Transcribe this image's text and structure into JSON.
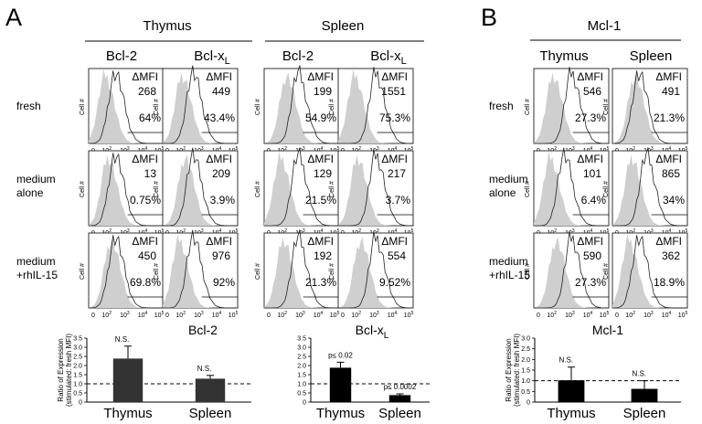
{
  "panels": {
    "A": "A",
    "B": "B"
  },
  "groups": {
    "thymus": "Thymus",
    "spleen": "Spleen",
    "mcl1": "Mcl-1"
  },
  "columns": {
    "bcl2": "Bcl-2",
    "bclx": "Bcl-x",
    "bclx_sub": "L",
    "thymus": "Thymus",
    "spleen": "Spleen"
  },
  "rows": {
    "fresh": [
      "fresh"
    ],
    "medium": [
      "medium",
      "alone"
    ],
    "il15": [
      "medium",
      "+rhIL-15"
    ]
  },
  "histogram": {
    "y_label": "Cell #",
    "x_ticks": [
      "0",
      "10",
      "10",
      "10",
      "10"
    ],
    "x_tick_exps": [
      "",
      "2",
      "3",
      "4",
      "5"
    ],
    "dmfi_label": "ΔMFI"
  },
  "cells": {
    "A": [
      [
        {
          "mfi": "268",
          "pct": "64%"
        },
        {
          "mfi": "449",
          "pct": "43.4%"
        },
        {
          "mfi": "199",
          "pct": "54.9%"
        },
        {
          "mfi": "1551",
          "pct": "75.3%"
        }
      ],
      [
        {
          "mfi": "13",
          "pct": "0.75%"
        },
        {
          "mfi": "209",
          "pct": "3.9%"
        },
        {
          "mfi": "129",
          "pct": "21.5%"
        },
        {
          "mfi": "217",
          "pct": "3.7%"
        }
      ],
      [
        {
          "mfi": "450",
          "pct": "69.8%"
        },
        {
          "mfi": "976",
          "pct": "92%"
        },
        {
          "mfi": "192",
          "pct": "21.3%"
        },
        {
          "mfi": "554",
          "pct": "9.52%"
        }
      ]
    ],
    "B": [
      [
        {
          "mfi": "546",
          "pct": "27.3%"
        },
        {
          "mfi": "491",
          "pct": "21.3%"
        }
      ],
      [
        {
          "mfi": "101",
          "pct": "6.4%"
        },
        {
          "mfi": "865",
          "pct": "34%"
        }
      ],
      [
        {
          "mfi": "590",
          "pct": "27.3%"
        },
        {
          "mfi": "362",
          "pct": "18.9%"
        }
      ]
    ]
  },
  "bar_ylabel": [
    "Ratio of Expression",
    "(stimulated: fresh MFI)"
  ],
  "chart_data": [
    {
      "type": "bar",
      "title": "Bcl-2",
      "categories": [
        "Thymus",
        "Spleen"
      ],
      "values": [
        2.38,
        1.28
      ],
      "errors": [
        0.68,
        0.18
      ],
      "annotations": [
        "N.S.",
        "N.S."
      ],
      "ylim": [
        0,
        3.5
      ],
      "yticks": [
        "0",
        "0.5",
        "1.0",
        "1.5",
        "2.0",
        "2.5",
        "3.0",
        "3.5"
      ],
      "reference_line": 1.0,
      "bar_color": "#333333"
    },
    {
      "type": "bar",
      "title": "Bcl-x",
      "title_sub": "L",
      "categories": [
        "Thymus",
        "Spleen"
      ],
      "values": [
        1.88,
        0.38
      ],
      "errors": [
        0.3,
        0.07
      ],
      "annotations": [
        "p≤ 0.02",
        "p≤ 0.0002"
      ],
      "ylim": [
        0,
        3.5
      ],
      "yticks": [
        "0",
        "0.5",
        "1.0",
        "1.5",
        "2.0",
        "2.5",
        "3.0",
        "3.5"
      ],
      "reference_line": 1.0,
      "bar_color": "#000000"
    },
    {
      "type": "bar",
      "title": "Mcl-1",
      "categories": [
        "Thymus",
        "Spleen"
      ],
      "values": [
        1.02,
        0.62
      ],
      "errors": [
        0.62,
        0.38
      ],
      "annotations": [
        "N.S.",
        "N.S."
      ],
      "ylim": [
        0,
        3.0
      ],
      "yticks": [
        "0",
        "0.5",
        "1.0",
        "1.5",
        "2.0",
        "2.5",
        "3.0"
      ],
      "reference_line": 1.0,
      "bar_color": "#000000"
    }
  ]
}
